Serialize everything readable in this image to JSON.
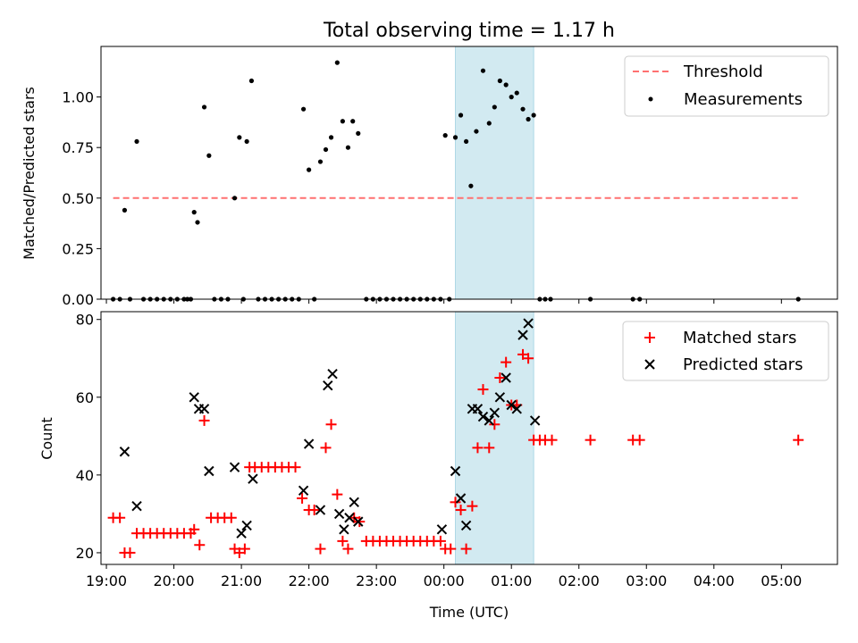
{
  "title": "Total observing time = 1.17 h",
  "xlabel": "Time (UTC)",
  "x_ticks": [
    "19:00",
    "20:00",
    "21:00",
    "22:00",
    "23:00",
    "00:00",
    "01:00",
    "02:00",
    "03:00",
    "04:00",
    "05:00"
  ],
  "colors": {
    "threshold": "#ff7070",
    "matched": "#ff0000",
    "predicted": "#000000",
    "measure": "#000000",
    "shade": "#add8e6"
  },
  "chart_data": [
    {
      "type": "scatter",
      "ylabel": "Matched/Predicted stars",
      "xlim": [
        18.92,
        29.83
      ],
      "ylim": [
        0,
        1.25
      ],
      "y_ticks": [
        "0.00",
        "0.25",
        "0.50",
        "0.75",
        "1.00"
      ],
      "y_tick_values": [
        0,
        0.25,
        0.5,
        0.75,
        1.0
      ],
      "shaded_span": [
        24.17,
        25.33
      ],
      "legend_position": "upper right",
      "threshold": {
        "name": "Threshold",
        "y": 0.5,
        "x": [
          19.1,
          29.25
        ]
      },
      "series": [
        {
          "name": "Measurements",
          "points": [
            [
              19.1,
              0
            ],
            [
              19.2,
              0
            ],
            [
              19.27,
              0.44
            ],
            [
              19.35,
              0
            ],
            [
              19.45,
              0.78
            ],
            [
              19.55,
              0
            ],
            [
              19.65,
              0
            ],
            [
              19.75,
              0
            ],
            [
              19.85,
              0
            ],
            [
              19.95,
              0
            ],
            [
              20.05,
              0
            ],
            [
              20.15,
              0
            ],
            [
              20.2,
              0
            ],
            [
              20.25,
              0
            ],
            [
              20.3,
              0.43
            ],
            [
              20.35,
              0.38
            ],
            [
              20.45,
              0.95
            ],
            [
              20.52,
              0.71
            ],
            [
              20.6,
              0
            ],
            [
              20.7,
              0
            ],
            [
              20.8,
              0
            ],
            [
              20.9,
              0.5
            ],
            [
              20.97,
              0.8
            ],
            [
              21.03,
              0
            ],
            [
              21.08,
              0.78
            ],
            [
              21.15,
              1.08
            ],
            [
              21.25,
              0
            ],
            [
              21.35,
              0
            ],
            [
              21.45,
              0
            ],
            [
              21.55,
              0
            ],
            [
              21.65,
              0
            ],
            [
              21.75,
              0
            ],
            [
              21.85,
              0
            ],
            [
              21.92,
              0.94
            ],
            [
              22.0,
              0.64
            ],
            [
              22.08,
              0
            ],
            [
              22.17,
              0.68
            ],
            [
              22.25,
              0.74
            ],
            [
              22.33,
              0.8
            ],
            [
              22.42,
              1.17
            ],
            [
              22.5,
              0.88
            ],
            [
              22.58,
              0.75
            ],
            [
              22.65,
              0.88
            ],
            [
              22.73,
              0.82
            ],
            [
              22.85,
              0
            ],
            [
              22.95,
              0
            ],
            [
              23.05,
              0
            ],
            [
              23.15,
              0
            ],
            [
              23.25,
              0
            ],
            [
              23.35,
              0
            ],
            [
              23.45,
              0
            ],
            [
              23.55,
              0
            ],
            [
              23.65,
              0
            ],
            [
              23.75,
              0
            ],
            [
              23.85,
              0
            ],
            [
              23.95,
              0
            ],
            [
              24.02,
              0.81
            ],
            [
              24.08,
              0
            ],
            [
              24.17,
              0.8
            ],
            [
              24.25,
              0.91
            ],
            [
              24.33,
              0.78
            ],
            [
              24.4,
              0.56
            ],
            [
              24.48,
              0.83
            ],
            [
              24.58,
              1.13
            ],
            [
              24.67,
              0.87
            ],
            [
              24.75,
              0.95
            ],
            [
              24.83,
              1.08
            ],
            [
              24.92,
              1.06
            ],
            [
              25.0,
              1.0
            ],
            [
              25.08,
              1.02
            ],
            [
              25.17,
              0.94
            ],
            [
              25.25,
              0.89
            ],
            [
              25.33,
              0.91
            ],
            [
              25.42,
              0
            ],
            [
              25.5,
              0
            ],
            [
              25.58,
              0
            ],
            [
              26.17,
              0
            ],
            [
              26.8,
              0
            ],
            [
              26.9,
              0
            ],
            [
              29.25,
              0
            ]
          ]
        }
      ]
    },
    {
      "type": "scatter",
      "ylabel": "Count",
      "xlim": [
        18.92,
        29.83
      ],
      "ylim": [
        17,
        82
      ],
      "y_ticks": [
        "20",
        "40",
        "60",
        "80"
      ],
      "y_tick_values": [
        20,
        40,
        60,
        80
      ],
      "shaded_span": [
        24.17,
        25.33
      ],
      "legend_position": "upper right",
      "series": [
        {
          "name": "Matched stars",
          "marker": "plus",
          "points": [
            [
              19.1,
              29
            ],
            [
              19.2,
              29
            ],
            [
              19.27,
              20
            ],
            [
              19.35,
              20
            ],
            [
              19.45,
              25
            ],
            [
              19.55,
              25
            ],
            [
              19.65,
              25
            ],
            [
              19.75,
              25
            ],
            [
              19.85,
              25
            ],
            [
              19.95,
              25
            ],
            [
              20.05,
              25
            ],
            [
              20.15,
              25
            ],
            [
              20.25,
              25
            ],
            [
              20.3,
              26
            ],
            [
              20.38,
              22
            ],
            [
              20.45,
              54
            ],
            [
              20.55,
              29
            ],
            [
              20.65,
              29
            ],
            [
              20.75,
              29
            ],
            [
              20.85,
              29
            ],
            [
              20.9,
              21
            ],
            [
              20.97,
              20
            ],
            [
              21.05,
              21
            ],
            [
              21.12,
              42
            ],
            [
              21.2,
              42
            ],
            [
              21.3,
              42
            ],
            [
              21.4,
              42
            ],
            [
              21.5,
              42
            ],
            [
              21.6,
              42
            ],
            [
              21.7,
              42
            ],
            [
              21.8,
              42
            ],
            [
              21.9,
              34
            ],
            [
              22.0,
              31
            ],
            [
              22.08,
              31
            ],
            [
              22.17,
              21
            ],
            [
              22.25,
              47
            ],
            [
              22.33,
              53
            ],
            [
              22.42,
              35
            ],
            [
              22.5,
              23
            ],
            [
              22.58,
              21
            ],
            [
              22.67,
              29
            ],
            [
              22.75,
              28
            ],
            [
              22.85,
              23
            ],
            [
              22.95,
              23
            ],
            [
              23.05,
              23
            ],
            [
              23.15,
              23
            ],
            [
              23.25,
              23
            ],
            [
              23.35,
              23
            ],
            [
              23.45,
              23
            ],
            [
              23.55,
              23
            ],
            [
              23.65,
              23
            ],
            [
              23.75,
              23
            ],
            [
              23.85,
              23
            ],
            [
              23.95,
              23
            ],
            [
              24.02,
              21
            ],
            [
              24.1,
              21
            ],
            [
              24.17,
              33
            ],
            [
              24.25,
              31
            ],
            [
              24.33,
              21
            ],
            [
              24.42,
              32
            ],
            [
              24.5,
              47
            ],
            [
              24.58,
              62
            ],
            [
              24.67,
              47
            ],
            [
              24.75,
              53
            ],
            [
              24.83,
              65
            ],
            [
              24.92,
              69
            ],
            [
              25.0,
              58
            ],
            [
              25.08,
              58
            ],
            [
              25.17,
              71
            ],
            [
              25.25,
              70
            ],
            [
              25.33,
              49
            ],
            [
              25.42,
              49
            ],
            [
              25.5,
              49
            ],
            [
              25.6,
              49
            ],
            [
              26.17,
              49
            ],
            [
              26.8,
              49
            ],
            [
              26.9,
              49
            ],
            [
              29.25,
              49
            ]
          ]
        },
        {
          "name": "Predicted stars",
          "marker": "x",
          "points": [
            [
              19.27,
              46
            ],
            [
              19.45,
              32
            ],
            [
              20.3,
              60
            ],
            [
              20.37,
              57
            ],
            [
              20.45,
              57
            ],
            [
              20.52,
              41
            ],
            [
              20.9,
              42
            ],
            [
              21.0,
              25
            ],
            [
              21.08,
              27
            ],
            [
              21.17,
              39
            ],
            [
              21.92,
              36
            ],
            [
              22.0,
              48
            ],
            [
              22.17,
              31
            ],
            [
              22.28,
              63
            ],
            [
              22.35,
              66
            ],
            [
              22.45,
              30
            ],
            [
              22.52,
              26
            ],
            [
              22.6,
              29
            ],
            [
              22.67,
              33
            ],
            [
              22.73,
              28
            ],
            [
              23.97,
              26
            ],
            [
              24.17,
              41
            ],
            [
              24.25,
              34
            ],
            [
              24.33,
              27
            ],
            [
              24.42,
              57
            ],
            [
              24.5,
              57
            ],
            [
              24.58,
              55
            ],
            [
              24.67,
              54
            ],
            [
              24.75,
              56
            ],
            [
              24.83,
              60
            ],
            [
              24.92,
              65
            ],
            [
              25.0,
              58
            ],
            [
              25.08,
              57
            ],
            [
              25.17,
              76
            ],
            [
              25.25,
              79
            ],
            [
              25.35,
              54
            ]
          ]
        }
      ]
    }
  ]
}
